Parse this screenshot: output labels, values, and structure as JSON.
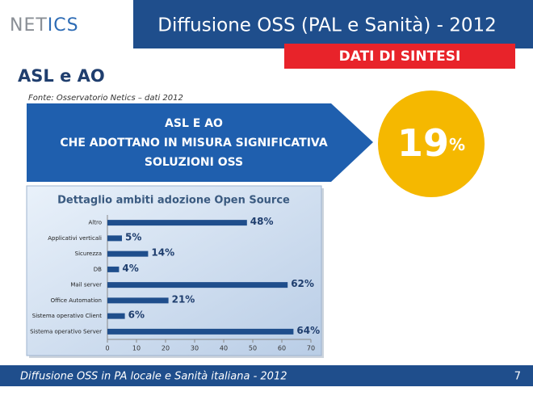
{
  "header": {
    "logo": [
      "NET",
      "ICS"
    ],
    "title": "Diffusione OSS (PAL e Sanità) - 2012"
  },
  "badge": "DATI DI SINTESI",
  "section": "ASL e AO",
  "source": "Fonte: Osservatorio Netics – dati 2012",
  "callout": {
    "lines": [
      "ASL E AO",
      "CHE ADOTTANO IN MISURA SIGNIFICATIVA",
      "SOLUZIONI OSS"
    ],
    "value": 19,
    "unit": "%"
  },
  "chart_data": {
    "type": "bar",
    "orientation": "horizontal",
    "title": "Dettaglio ambiti adozione Open Source",
    "categories": [
      "Altro",
      "Applicativi verticali",
      "Sicurezza",
      "DB",
      "Mail server",
      "Office Automation",
      "Sistema operativo Client",
      "Sistema operativo Server"
    ],
    "values": [
      48,
      5,
      14,
      4,
      62,
      21,
      6,
      64
    ],
    "value_labels": [
      "48%",
      "5%",
      "14%",
      "4%",
      "62%",
      "21%",
      "6%",
      "64%"
    ],
    "color": "#1f4e8c",
    "xlim": [
      0,
      70
    ],
    "xticks": [
      0,
      10,
      20,
      30,
      40,
      50,
      60,
      70
    ],
    "grid": false
  },
  "footer": {
    "text": "Diffusione OSS in PA locale e Sanità italiana - 2012",
    "page": 7
  }
}
